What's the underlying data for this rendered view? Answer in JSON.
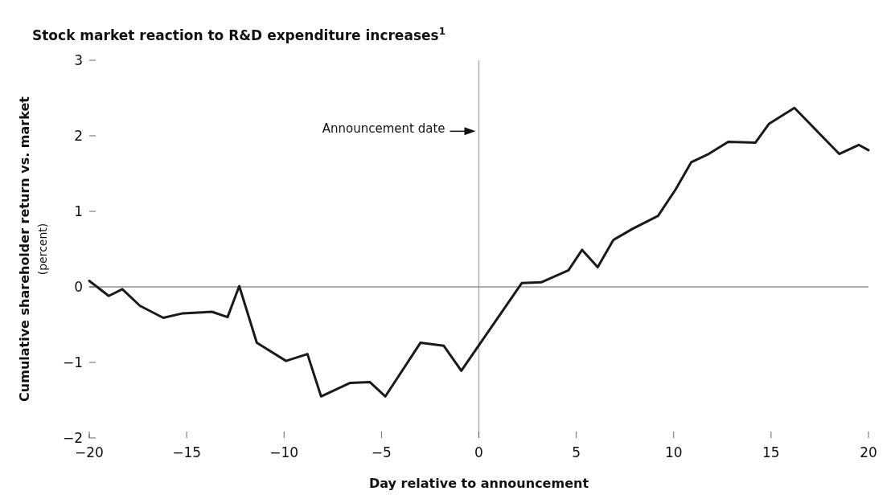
{
  "chart_data": {
    "type": "line",
    "title": "Stock market reaction to R&D expenditure increases$^{1}$",
    "xlabel": "Day relative to announcement",
    "ylabel": "Cumulative shareholder return vs. market\n(percent)",
    "xlim": [
      -20,
      20
    ],
    "xticks": [
      -20,
      -15,
      -10,
      -5,
      0,
      5,
      10,
      15,
      20
    ],
    "ylim": [
      -2,
      3
    ],
    "yticks": [
      -2,
      -1,
      0,
      1,
      2,
      3
    ],
    "grid": false,
    "marker": "none",
    "line_style": "solid",
    "ref_lines": [
      {
        "axis": "x",
        "value": 0,
        "label": "Announcement date",
        "color": "#b0b0b0"
      },
      {
        "axis": "y",
        "value": 0,
        "color": "#909090"
      }
    ],
    "series": [
      {
        "color": "#1a1a1a",
        "x": [
          -20,
          -19,
          -18.3,
          -17.4,
          -16.2,
          -15.2,
          -13.7,
          -12.9,
          -12.3,
          -11.4,
          -9.9,
          -8.8,
          -8.1,
          -6.6,
          -5.6,
          -4.8,
          -3,
          -1.8,
          -0.9,
          2.2,
          3.2,
          4.6,
          5.3,
          6.1,
          6.9,
          7.9,
          9.2,
          10.1,
          10.9,
          11.8,
          12.8,
          14.2,
          14.9,
          16.2,
          18.5,
          19.5,
          20
        ],
        "values": [
          0.08,
          -0.12,
          -0.03,
          -0.25,
          -0.41,
          -0.35,
          -0.33,
          -0.4,
          0.01,
          -0.74,
          -0.98,
          -0.89,
          -1.45,
          -1.27,
          -1.26,
          -1.45,
          -0.74,
          -0.78,
          -1.11,
          0.05,
          0.06,
          0.22,
          0.49,
          0.26,
          0.62,
          0.77,
          0.94,
          1.29,
          1.65,
          1.76,
          1.92,
          1.91,
          2.16,
          2.37,
          1.76,
          1.88,
          1.81
        ]
      }
    ]
  }
}
